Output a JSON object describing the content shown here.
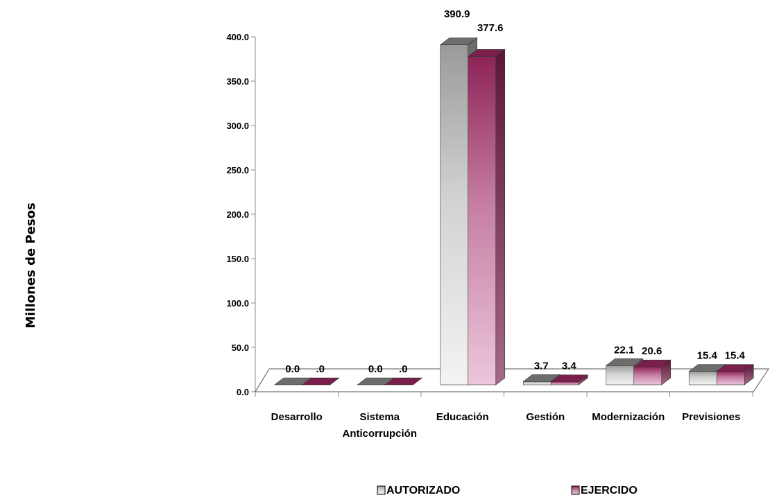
{
  "chart_data": {
    "type": "bar",
    "title": "",
    "ylabel": "Millones de Pesos",
    "xlabel": "",
    "ylim": [
      0,
      400
    ],
    "yticks": [
      "0.0",
      "50.0",
      "100.0",
      "150.0",
      "200.0",
      "250.0",
      "300.0",
      "350.0",
      "400.0"
    ],
    "categories": [
      [
        "Desarrollo"
      ],
      [
        "Sistema",
        "Anticorrupción"
      ],
      [
        "Educación"
      ],
      [
        "Gestión"
      ],
      [
        "Modernización"
      ],
      [
        "Previsiones"
      ]
    ],
    "series": [
      {
        "name": "AUTORIZADO",
        "values": [
          0.0,
          0.0,
          390.9,
          3.7,
          22.1,
          15.4
        ],
        "labels": [
          "0.0",
          "0.0",
          "390.9",
          "3.7",
          "22.1",
          "15.4"
        ]
      },
      {
        "name": "EJERCIDO",
        "values": [
          0.0,
          0.0,
          377.6,
          3.4,
          20.6,
          15.4
        ],
        "labels": [
          ".0",
          ".0",
          "377.6",
          "3.4",
          "20.6",
          "15.4"
        ]
      }
    ],
    "legend_position": "bottom",
    "grid": false
  },
  "colors": {
    "autorizado_top": "#6d6d6d",
    "autorizado_front_light": "#f3f3f3",
    "autorizado_front_dark": "#9a9a9a",
    "autorizado_side": "#7a7a7a",
    "ejercido_top": "#7a1f4c",
    "ejercido_front_light": "#e6bdd2",
    "ejercido_front_dark": "#8e2458",
    "ejercido_side": "#5c1738"
  }
}
